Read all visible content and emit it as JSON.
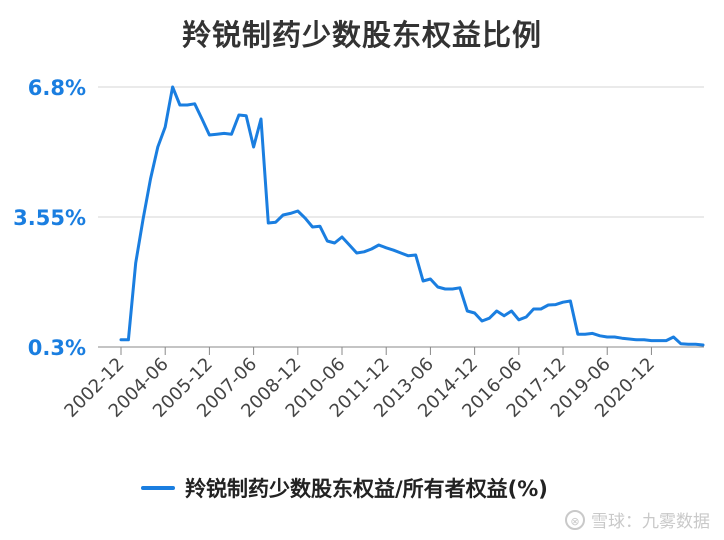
{
  "chart_data": {
    "type": "line",
    "title": "羚锐制药少数股东权益比例",
    "y_ticks": [
      "6.8%",
      "3.55%",
      "0.3%"
    ],
    "y_tick_values": [
      6.8,
      3.55,
      0.3
    ],
    "ylim": [
      0.3,
      6.8
    ],
    "x_tick_labels": [
      "2002-12",
      "2004-06",
      "2005-12",
      "2007-06",
      "2008-12",
      "2010-06",
      "2011-12",
      "2013-06",
      "2014-12",
      "2016-06",
      "2017-12",
      "2019-06",
      "2020-12"
    ],
    "series": [
      {
        "name": "羚锐制药少数股东权益/所有者权益(%)",
        "color": "#1a7ee0",
        "values": [
          0.48,
          0.48,
          2.4,
          3.5,
          4.5,
          5.3,
          5.8,
          6.8,
          6.35,
          6.35,
          6.38,
          6.0,
          5.6,
          5.62,
          5.64,
          5.62,
          6.1,
          6.08,
          5.3,
          6.0,
          3.4,
          3.42,
          3.6,
          3.64,
          3.7,
          3.52,
          3.3,
          3.32,
          2.95,
          2.9,
          3.05,
          2.85,
          2.65,
          2.68,
          2.75,
          2.85,
          2.78,
          2.72,
          2.65,
          2.58,
          2.6,
          1.95,
          2.0,
          1.8,
          1.75,
          1.75,
          1.78,
          1.2,
          1.15,
          0.95,
          1.02,
          1.2,
          1.08,
          1.2,
          0.98,
          1.05,
          1.25,
          1.25,
          1.35,
          1.36,
          1.42,
          1.45,
          0.62,
          0.62,
          0.64,
          0.58,
          0.55,
          0.55,
          0.52,
          0.5,
          0.48,
          0.48,
          0.46,
          0.46,
          0.46,
          0.55,
          0.38,
          0.37,
          0.37,
          0.35
        ]
      }
    ],
    "legend": "bottom",
    "grid": true
  },
  "legend": {
    "label": "羚锐制药少数股东权益/所有者权益(%)"
  },
  "watermark": {
    "logo": "⊗",
    "text": "雪球：九雾数据"
  }
}
